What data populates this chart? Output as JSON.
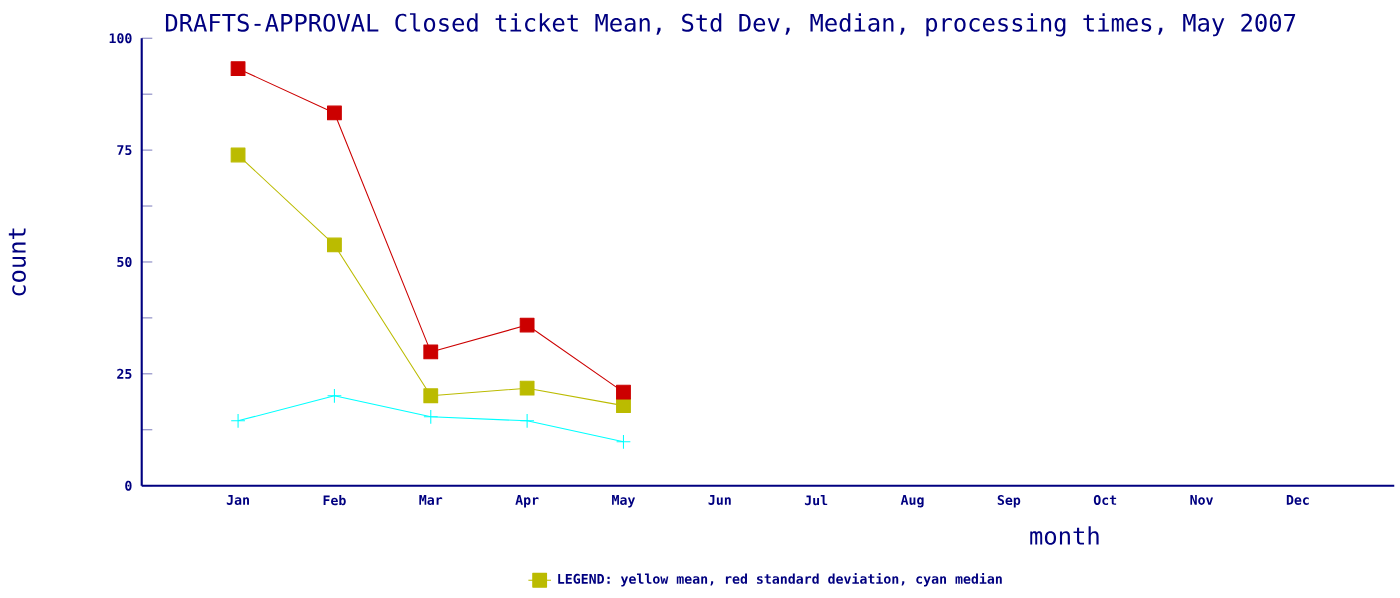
{
  "chart_data": {
    "type": "line",
    "title": "DRAFTS-APPROVAL Closed ticket Mean, Std Dev, Median, processing times, May 2007",
    "xlabel": "month",
    "ylabel": "count",
    "categories": [
      "Jan",
      "Feb",
      "Mar",
      "Apr",
      "May",
      "Jun",
      "Jul",
      "Aug",
      "Sep",
      "Oct",
      "Nov",
      "Dec"
    ],
    "series": [
      {
        "name": "LEGEND: yellow mean, red standard deviation, cyan median",
        "color": "#bbbb00",
        "marker": "square",
        "values": [
          73.9,
          53.8,
          20.1,
          21.8,
          17.9,
          null,
          null,
          null,
          null,
          null,
          null,
          null
        ]
      },
      {
        "color": "#cc0000",
        "marker": "square",
        "values": [
          93.2,
          83.3,
          29.9,
          35.9,
          20.9,
          null,
          null,
          null,
          null,
          null,
          null,
          null
        ]
      },
      {
        "color": "#00ffff",
        "marker": "cross",
        "values": [
          14.5,
          20.1,
          15.4,
          14.5,
          9.8,
          null,
          null,
          null,
          null,
          null,
          null,
          null
        ]
      }
    ],
    "ylim": [
      0,
      100
    ],
    "yticks": [
      0,
      25,
      50,
      75,
      100
    ],
    "grid": false,
    "legend": "bottom"
  }
}
